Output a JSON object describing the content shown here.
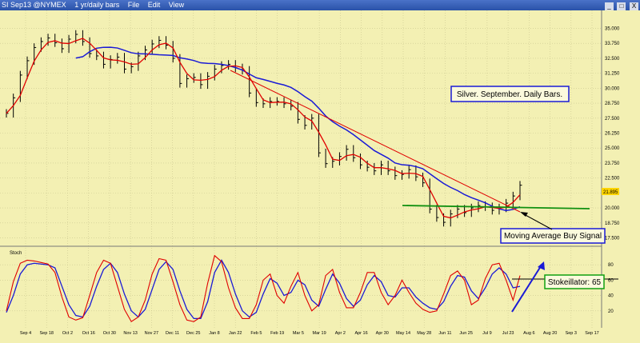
{
  "window": {
    "symbol": "SI Sep13 @NYMEX",
    "period": "1 yr/daily bars",
    "menu": [
      "File",
      "Edit",
      "View"
    ],
    "buttons": [
      "_",
      "□",
      "X"
    ]
  },
  "colors": {
    "background": "#f3f0b3",
    "price_bars": "#000000",
    "ma_fast": "#e00000",
    "ma_slow": "#1a1ad6",
    "trendline": "#e00000",
    "horizontal_line": "#109010",
    "arrow": "#1a1ad6",
    "stoch_k": "#e00000",
    "stoch_d": "#1a1ad6"
  },
  "annotations": {
    "title_box": "Silver. September. Daily Bars.",
    "signal_box": "Moving Average Buy Signal",
    "stoch_box": "Stokeillator: 65"
  },
  "chart_data": [
    {
      "type": "ohlc-line",
      "price_ticks": [
        "35.000",
        "33.750",
        "32.500",
        "31.250",
        "30.000",
        "28.750",
        "27.500",
        "26.250",
        "25.000",
        "23.750",
        "22.500",
        "21.250",
        "20.000",
        "18.750",
        "17.500"
      ],
      "price_range": [
        17.0,
        35.5
      ],
      "last_price_label": "21.895",
      "date_labels": [
        "Sep 4",
        "Sep 18",
        "Oct 2",
        "Oct 16",
        "Oct 30",
        "Nov 13",
        "Nov 27",
        "Dec 11",
        "Dec 25",
        "Jan 8",
        "Jan 22",
        "Feb 5",
        "Feb 19",
        "Mar 5",
        "Mar 19",
        "Apr 2",
        "Apr 16",
        "Apr 30",
        "May 14",
        "May 28",
        "Jun 11",
        "Jun 25",
        "Jul 9",
        "Jul 23",
        "Aug 6",
        "Aug 20",
        "Sep 3",
        "Sep 17"
      ],
      "closes": [
        27.9,
        29.2,
        31.1,
        32.3,
        33.4,
        33.9,
        34.2,
        33.8,
        33.3,
        34.1,
        34.5,
        33.9,
        32.9,
        32.7,
        32.0,
        32.4,
        32.6,
        31.6,
        31.8,
        32.7,
        33.2,
        33.7,
        34.0,
        33.6,
        32.5,
        30.4,
        30.8,
        30.9,
        30.3,
        31.0,
        31.6,
        31.9,
        32.0,
        31.7,
        31.5,
        29.6,
        28.8,
        28.7,
        28.9,
        28.9,
        28.7,
        28.5,
        27.4,
        26.9,
        27.5,
        24.6,
        23.7,
        23.9,
        24.3,
        24.9,
        24.2,
        23.6,
        23.4,
        23.1,
        23.6,
        23.1,
        22.7,
        22.8,
        23.2,
        22.6,
        22.1,
        19.9,
        19.2,
        18.8,
        19.5,
        19.9,
        19.6,
        20.0,
        20.2,
        20.1,
        19.8,
        20.0,
        20.4,
        21.0,
        21.9
      ],
      "stoch_ticks": [
        "80",
        "60",
        "40",
        "20"
      ],
      "stoch_range": [
        0,
        100
      ],
      "stoch_label": "Stoch",
      "stoch_k": [
        20,
        58,
        82,
        86,
        85,
        83,
        81,
        70,
        38,
        12,
        8,
        11,
        40,
        70,
        86,
        82,
        52,
        22,
        6,
        12,
        34,
        68,
        88,
        86,
        58,
        28,
        8,
        6,
        12,
        56,
        92,
        84,
        50,
        24,
        10,
        10,
        28,
        60,
        68,
        40,
        30,
        52,
        70,
        40,
        20,
        28,
        66,
        74,
        44,
        24,
        24,
        44,
        70,
        70,
        44,
        28,
        40,
        60,
        44,
        30,
        22,
        18,
        20,
        42,
        66,
        72,
        60,
        28,
        34,
        62,
        80,
        82,
        60,
        34,
        66
      ],
      "stoch_d": [
        18,
        40,
        68,
        80,
        82,
        81,
        80,
        76,
        52,
        28,
        14,
        12,
        26,
        52,
        74,
        82,
        70,
        42,
        20,
        12,
        22,
        48,
        74,
        84,
        74,
        46,
        22,
        10,
        10,
        32,
        70,
        86,
        70,
        42,
        20,
        12,
        18,
        42,
        62,
        56,
        40,
        44,
        60,
        54,
        34,
        26,
        48,
        68,
        56,
        36,
        26,
        34,
        54,
        66,
        58,
        40,
        38,
        50,
        50,
        38,
        30,
        24,
        22,
        32,
        52,
        66,
        64,
        46,
        36,
        50,
        68,
        76,
        68,
        50,
        52
      ],
      "signal_value": 65
    }
  ]
}
